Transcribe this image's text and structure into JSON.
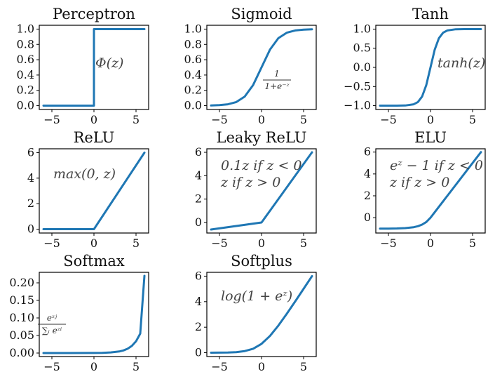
{
  "colors": {
    "line": "#1f77b4",
    "axis": "#000000",
    "text": "#111111",
    "annotation": "#444444"
  },
  "chart_data": [
    {
      "type": "line",
      "title": "Perceptron",
      "xlim": [
        -6.5,
        6.5
      ],
      "ylim": [
        -0.05,
        1.05
      ],
      "xticks": [
        -5,
        0,
        5
      ],
      "xticklabels": [
        "−5",
        "0",
        "5"
      ],
      "yticks": [
        0,
        0.2,
        0.4,
        0.6,
        0.8,
        1.0
      ],
      "yticklabels": [
        "0.0",
        "0.2",
        "0.4",
        "0.6",
        "0.8",
        "1.0"
      ],
      "annotations": [
        {
          "text": "Φ(z)"
        }
      ],
      "series": [
        {
          "x": [
            -6,
            0,
            0,
            6
          ],
          "y": [
            0,
            0,
            1,
            1
          ]
        }
      ]
    },
    {
      "type": "line",
      "title": "Sigmoid",
      "xlim": [
        -6.5,
        6.5
      ],
      "ylim": [
        -0.05,
        1.05
      ],
      "xticks": [
        -5,
        0,
        5
      ],
      "xticklabels": [
        "−5",
        "0",
        "5"
      ],
      "yticks": [
        0,
        0.2,
        0.4,
        0.6,
        0.8,
        1.0
      ],
      "yticklabels": [
        "0.0",
        "0.2",
        "0.4",
        "0.6",
        "0.8",
        "1.0"
      ],
      "annotations": [
        {
          "numerator": "1",
          "denominator": "1+e⁻ᶻ"
        }
      ],
      "series": [
        {
          "x": [
            -6,
            -5,
            -4,
            -3,
            -2,
            -1,
            0,
            1,
            2,
            3,
            4,
            5,
            6
          ],
          "y": [
            0.0025,
            0.0067,
            0.018,
            0.047,
            0.119,
            0.269,
            0.5,
            0.731,
            0.881,
            0.953,
            0.982,
            0.993,
            0.998
          ]
        }
      ]
    },
    {
      "type": "line",
      "title": "Tanh",
      "xlim": [
        -6.5,
        6.5
      ],
      "ylim": [
        -1.1,
        1.1
      ],
      "xticks": [
        -5,
        0,
        5
      ],
      "xticklabels": [
        "−5",
        "0",
        "5"
      ],
      "yticks": [
        -1.0,
        -0.5,
        0,
        0.5,
        1.0
      ],
      "yticklabels": [
        "−1.0",
        "−0.5",
        "0.0",
        "0.5",
        "1.0"
      ],
      "annotations": [
        {
          "text": "tanh(z)"
        }
      ],
      "series": [
        {
          "x": [
            -6,
            -4,
            -3,
            -2,
            -1.5,
            -1,
            -0.5,
            0,
            0.5,
            1,
            1.5,
            2,
            3,
            4,
            6
          ],
          "y": [
            -1,
            -0.999,
            -0.995,
            -0.964,
            -0.905,
            -0.762,
            -0.462,
            0,
            0.462,
            0.762,
            0.905,
            0.964,
            0.995,
            0.999,
            1
          ]
        }
      ]
    },
    {
      "type": "line",
      "title": "ReLU",
      "xlim": [
        -6.5,
        6.5
      ],
      "ylim": [
        -0.3,
        6.3
      ],
      "xticks": [
        -5,
        0,
        5
      ],
      "xticklabels": [
        "−5",
        "0",
        "5"
      ],
      "yticks": [
        0,
        2,
        4,
        6
      ],
      "yticklabels": [
        "0",
        "2",
        "4",
        "6"
      ],
      "annotations": [
        {
          "text": "max(0, z)"
        }
      ],
      "series": [
        {
          "x": [
            -6,
            0,
            6
          ],
          "y": [
            0,
            0,
            6
          ]
        }
      ]
    },
    {
      "type": "line",
      "title": "Leaky ReLU",
      "xlim": [
        -6.5,
        6.5
      ],
      "ylim": [
        -0.9,
        6.3
      ],
      "xticks": [
        -5,
        0,
        5
      ],
      "xticklabels": [
        "−5",
        "0",
        "5"
      ],
      "yticks": [
        0,
        2,
        4,
        6
      ],
      "yticklabels": [
        "0",
        "2",
        "4",
        "6"
      ],
      "annotations": [
        {
          "text": "0.1z if z < 0"
        },
        {
          "text": "z if z > 0"
        }
      ],
      "series": [
        {
          "x": [
            -6,
            0,
            6
          ],
          "y": [
            -0.6,
            0,
            6
          ]
        }
      ]
    },
    {
      "type": "line",
      "title": "ELU",
      "xlim": [
        -6.5,
        6.5
      ],
      "ylim": [
        -1.4,
        6.3
      ],
      "xticks": [
        -5,
        0,
        5
      ],
      "xticklabels": [
        "−5",
        "0",
        "5"
      ],
      "yticks": [
        0,
        2,
        4,
        6
      ],
      "yticklabels": [
        "0",
        "2",
        "4",
        "6"
      ],
      "annotations": [
        {
          "text": "eᶻ − 1 if z < 0"
        },
        {
          "text": "z if z > 0"
        }
      ],
      "series": [
        {
          "x": [
            -6,
            -5,
            -4,
            -3,
            -2,
            -1.5,
            -1,
            -0.5,
            0,
            6
          ],
          "y": [
            -0.998,
            -0.993,
            -0.982,
            -0.95,
            -0.865,
            -0.777,
            -0.632,
            -0.393,
            0,
            6
          ]
        }
      ]
    },
    {
      "type": "line",
      "title": "Softmax",
      "xlim": [
        -6.5,
        6.5
      ],
      "ylim": [
        -0.01,
        0.23
      ],
      "xticks": [
        -5,
        0,
        5
      ],
      "xticklabels": [
        "−5",
        "0",
        "5"
      ],
      "yticks": [
        0,
        0.05,
        0.1,
        0.15,
        0.2
      ],
      "yticklabels": [
        "0.00",
        "0.05",
        "0.10",
        "0.15",
        "0.20"
      ],
      "annotations": [
        {
          "numerator": "eᶻʲ",
          "denominator": "∑ᵢ eᶻⁱ"
        }
      ],
      "series": [
        {
          "x": [
            -6,
            -3,
            0,
            1,
            2,
            3,
            3.5,
            4,
            4.5,
            5,
            5.5,
            6
          ],
          "y": [
            0,
            1e-05,
            0.0002,
            0.0006,
            0.0017,
            0.0045,
            0.0075,
            0.0123,
            0.0203,
            0.0334,
            0.0551,
            0.22
          ]
        }
      ]
    },
    {
      "type": "line",
      "title": "Softplus",
      "xlim": [
        -6.5,
        6.5
      ],
      "ylim": [
        -0.3,
        6.3
      ],
      "xticks": [
        -5,
        0,
        5
      ],
      "xticklabels": [
        "−5",
        "0",
        "5"
      ],
      "yticks": [
        0,
        2,
        4,
        6
      ],
      "yticklabels": [
        "0",
        "2",
        "4",
        "6"
      ],
      "annotations": [
        {
          "text": "log(1 + eᶻ)"
        }
      ],
      "series": [
        {
          "x": [
            -6,
            -4,
            -3,
            -2,
            -1,
            0,
            1,
            2,
            3,
            4,
            5,
            6
          ],
          "y": [
            0.0025,
            0.018,
            0.049,
            0.127,
            0.313,
            0.693,
            1.313,
            2.127,
            3.049,
            4.018,
            5.007,
            6.002
          ]
        }
      ]
    }
  ]
}
